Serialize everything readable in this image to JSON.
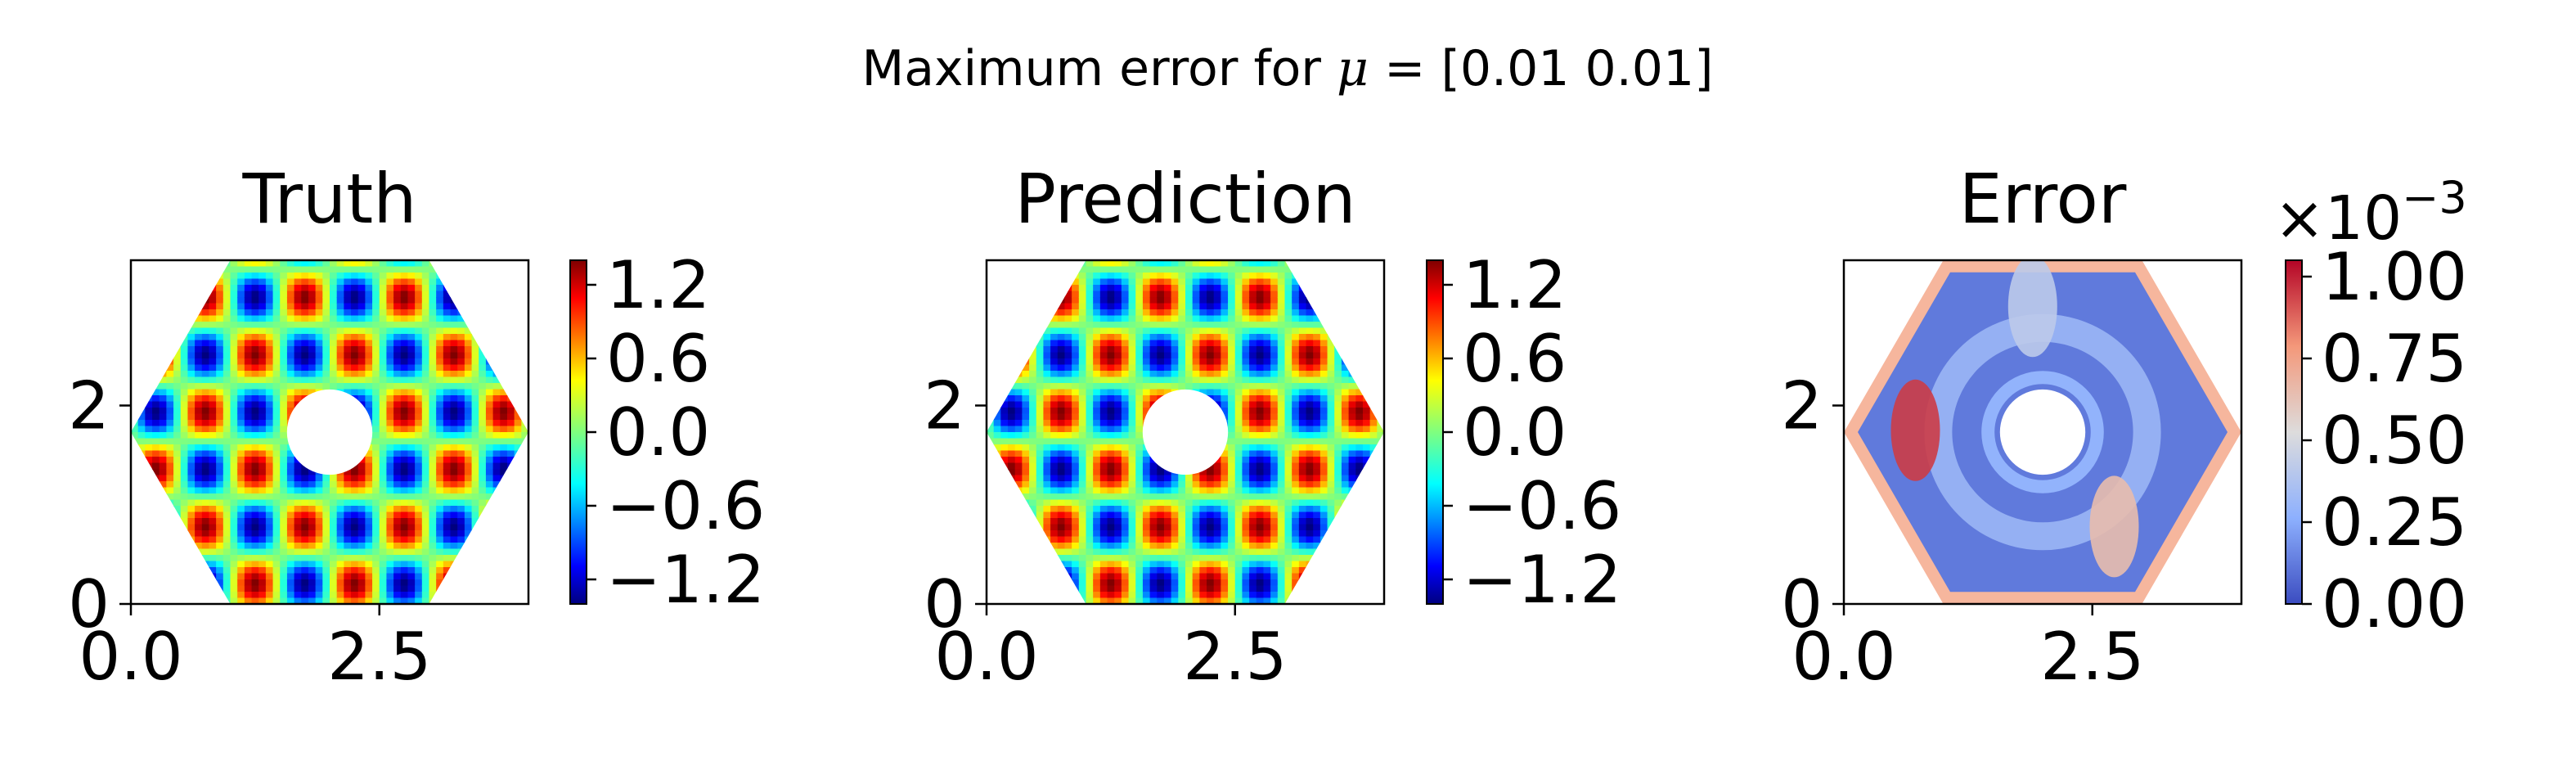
{
  "figure": {
    "suptitle_prefix": "Maximum error for ",
    "suptitle_mu": "μ",
    "suptitle_suffix": " = [0.01 0.01]"
  },
  "chart_data": [
    {
      "type": "heatmap",
      "title": "Truth",
      "colormap": "jet",
      "x_range": [
        0,
        4
      ],
      "y_range": [
        0,
        3.464
      ],
      "xticks": [
        "0.0",
        "2.5"
      ],
      "xtick_values": [
        0,
        2.5
      ],
      "yticks": [
        "0",
        "2"
      ],
      "ytick_values": [
        0,
        2
      ],
      "colorbar": {
        "range": [
          -1.4,
          1.4
        ],
        "ticks": [
          "1.2",
          "0.6",
          "0.0",
          "−0.6",
          "−1.2"
        ],
        "tick_values": [
          1.2,
          0.6,
          0.0,
          -0.6,
          -1.2
        ]
      },
      "field": {
        "amplitude": 1.4,
        "kx": 6.2832,
        "ky": 5.44
      }
    },
    {
      "type": "heatmap",
      "title": "Prediction",
      "colormap": "jet",
      "x_range": [
        0,
        4
      ],
      "y_range": [
        0,
        3.464
      ],
      "xticks": [
        "0.0",
        "2.5"
      ],
      "xtick_values": [
        0,
        2.5
      ],
      "yticks": [
        "0",
        "2"
      ],
      "ytick_values": [
        0,
        2
      ],
      "colorbar": {
        "range": [
          -1.4,
          1.4
        ],
        "ticks": [
          "1.2",
          "0.6",
          "0.0",
          "−0.6",
          "−1.2"
        ],
        "tick_values": [
          1.2,
          0.6,
          0.0,
          -0.6,
          -1.2
        ]
      },
      "field": {
        "amplitude": 1.4,
        "kx": 6.2832,
        "ky": 5.44
      }
    },
    {
      "type": "heatmap",
      "title": "Error",
      "colormap": "coolwarm",
      "x_range": [
        0,
        4
      ],
      "y_range": [
        0,
        3.464
      ],
      "xticks": [
        "0.0",
        "2.5"
      ],
      "xtick_values": [
        0,
        2.5
      ],
      "yticks": [
        "0",
        "2"
      ],
      "ytick_values": [
        0,
        2
      ],
      "colorbar": {
        "range": [
          0,
          1.05
        ],
        "ticks": [
          "1.00",
          "0.75",
          "0.50",
          "0.25",
          "0.00"
        ],
        "tick_values": [
          1.0,
          0.75,
          0.5,
          0.25,
          0.0
        ],
        "offset_prefix": "×10",
        "offset_exponent": "−3"
      },
      "hotspots": [
        {
          "x": 0.72,
          "y": 1.75,
          "value": 0.95
        },
        {
          "x": 2.72,
          "y": 0.78,
          "value": 0.65
        },
        {
          "x": 1.9,
          "y": 3.0,
          "value": 0.42
        }
      ]
    }
  ]
}
